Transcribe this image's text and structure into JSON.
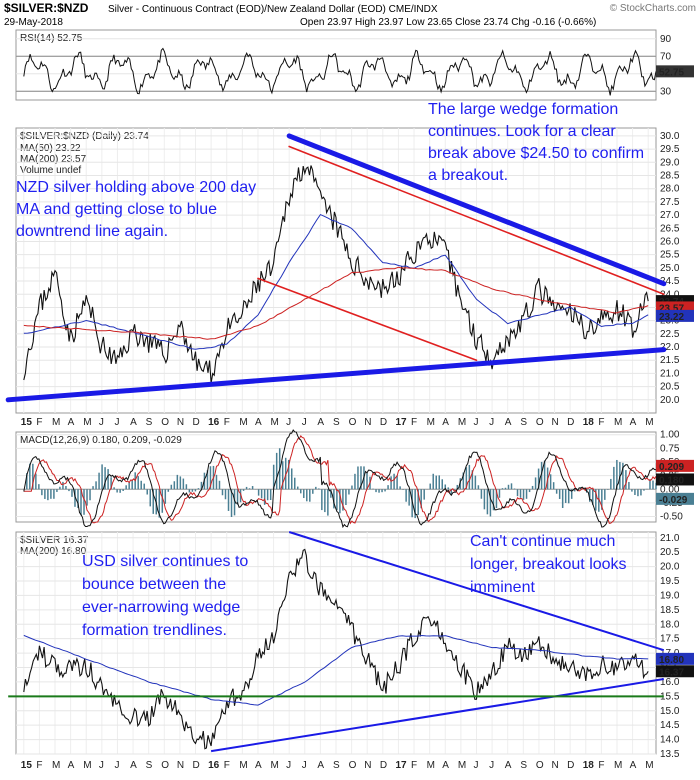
{
  "header": {
    "symbol": "$SILVER:$NZD",
    "description": "Silver - Continuous Contract (EOD)/New Zealand Dollar (EOD)  CME/INDX",
    "date": "29-May-2018",
    "ohlc": "Open 23.97  High 23.97  Low 23.65  Close 23.74  Chg -0.16 (-0.66%)",
    "watermark": "© StockCharts.com"
  },
  "colors": {
    "price": "#111111",
    "ma50": "#2233bb",
    "ma200": "#cc2222",
    "trend_blue": "#1a1ae6",
    "trend_red": "#e02020",
    "macd_hist": "#4a7f93",
    "support_green": "#1a7a1a",
    "annotation": "#1f1ff0"
  },
  "chart_data": [
    {
      "type": "line",
      "panel": "rsi",
      "title": "RSI(14) 52.75",
      "ylim": [
        20,
        100
      ],
      "y_ticks": [
        "90",
        "70",
        "50",
        "30"
      ],
      "last_value": "52.75"
    },
    {
      "type": "line",
      "panel": "nzd_price",
      "title": "$SILVER:$NZD (Daily) 23.74",
      "legend": [
        "MA(50) 23.22",
        "MA(200) 23.57",
        "Volume undef"
      ],
      "ylim": [
        19.5,
        30.3
      ],
      "y_ticks": [
        "30.0",
        "29.5",
        "29.0",
        "28.5",
        "28.0",
        "27.5",
        "27.0",
        "26.5",
        "26.0",
        "25.5",
        "25.0",
        "24.5",
        "24.0",
        "23.5",
        "23.0",
        "22.5",
        "22.0",
        "21.5",
        "21.0",
        "20.5",
        "20.0"
      ],
      "last_labels": [
        "23.74",
        "23.57",
        "23.22"
      ],
      "x_labels": [
        "15",
        "F",
        "M",
        "A",
        "M",
        "J",
        "J",
        "A",
        "S",
        "O",
        "N",
        "D",
        "16",
        "F",
        "M",
        "A",
        "M",
        "J",
        "J",
        "A",
        "S",
        "O",
        "N",
        "D",
        "17",
        "F",
        "M",
        "A",
        "M",
        "J",
        "J",
        "A",
        "S",
        "O",
        "N",
        "D",
        "18",
        "F",
        "M",
        "A",
        "M"
      ],
      "series": [
        {
          "name": "$SILVER:$NZD",
          "points": [
            [
              0,
              21.2
            ],
            [
              1,
              23.5
            ],
            [
              2,
              24.8
            ],
            [
              3,
              22.3
            ],
            [
              4,
              23.8
            ],
            [
              5,
              22.0
            ],
            [
              6,
              21.4
            ],
            [
              7,
              22.6
            ],
            [
              8,
              22.2
            ],
            [
              9,
              21.7
            ],
            [
              10,
              22.9
            ],
            [
              11,
              21.4
            ],
            [
              12,
              21.0
            ],
            [
              13,
              22.6
            ],
            [
              14,
              23.2
            ],
            [
              15,
              24.4
            ],
            [
              16,
              25.0
            ],
            [
              17,
              27.8
            ],
            [
              18,
              29.0
            ],
            [
              19,
              27.6
            ],
            [
              20,
              26.6
            ],
            [
              21,
              25.2
            ],
            [
              22,
              24.6
            ],
            [
              23,
              24.2
            ],
            [
              24,
              24.6
            ],
            [
              25,
              25.6
            ],
            [
              26,
              26.2
            ],
            [
              27,
              25.6
            ],
            [
              28,
              23.8
            ],
            [
              29,
              22.3
            ],
            [
              30,
              21.6
            ],
            [
              31,
              22.3
            ],
            [
              32,
              23.0
            ],
            [
              33,
              24.2
            ],
            [
              34,
              23.4
            ],
            [
              35,
              23.3
            ],
            [
              36,
              22.7
            ],
            [
              37,
              23.0
            ],
            [
              38,
              23.5
            ],
            [
              39,
              22.8
            ],
            [
              40,
              23.74
            ]
          ]
        },
        {
          "name": "MA(50) 23.22",
          "points": [
            [
              0,
              22.5
            ],
            [
              4,
              23.0
            ],
            [
              8,
              22.4
            ],
            [
              11,
              21.9
            ],
            [
              13,
              22.1
            ],
            [
              15,
              23.2
            ],
            [
              17,
              25.2
            ],
            [
              19,
              27.0
            ],
            [
              21,
              26.5
            ],
            [
              23,
              25.2
            ],
            [
              25,
              25.0
            ],
            [
              27,
              25.5
            ],
            [
              29,
              23.8
            ],
            [
              31,
              22.9
            ],
            [
              33,
              23.2
            ],
            [
              35,
              23.5
            ],
            [
              37,
              22.8
            ],
            [
              39,
              22.9
            ],
            [
              40,
              23.22
            ]
          ]
        },
        {
          "name": "MA(200) 23.57",
          "points": [
            [
              0,
              22.8
            ],
            [
              6,
              22.6
            ],
            [
              12,
              22.3
            ],
            [
              15,
              22.8
            ],
            [
              18,
              23.8
            ],
            [
              21,
              24.8
            ],
            [
              24,
              25.0
            ],
            [
              27,
              24.9
            ],
            [
              30,
              24.2
            ],
            [
              33,
              23.8
            ],
            [
              36,
              23.5
            ],
            [
              38,
              23.3
            ],
            [
              40,
              23.57
            ]
          ]
        }
      ],
      "trendlines": [
        {
          "name": "blue downtrend",
          "from": [
            17,
            30.0
          ],
          "to": [
            41,
            24.4
          ]
        },
        {
          "name": "red upper channel",
          "from": [
            17,
            29.6
          ],
          "to": [
            41,
            24.0
          ]
        },
        {
          "name": "red lower channel",
          "from": [
            15,
            24.6
          ],
          "to": [
            29,
            21.5
          ]
        },
        {
          "name": "blue uptrend",
          "from": [
            -1,
            20.0
          ],
          "to": [
            41,
            21.9
          ]
        }
      ]
    },
    {
      "type": "line",
      "panel": "macd",
      "title": "MACD(12,26,9) 0.180, 0.209, -0.029",
      "ylim": [
        -0.6,
        1.05
      ],
      "y_ticks": [
        "1.00",
        "0.75",
        "0.50",
        "0.25",
        "0.00",
        "-0.25",
        "-0.50"
      ],
      "last_labels": [
        "0.180",
        "0.209",
        "-0.029"
      ]
    },
    {
      "type": "line",
      "panel": "usd_price",
      "title": "$SILVER 16.37",
      "legend": [
        "MA(200) 16.80"
      ],
      "ylim": [
        13.5,
        21.2
      ],
      "y_ticks": [
        "21.0",
        "20.5",
        "20.0",
        "19.5",
        "19.0",
        "18.5",
        "18.0",
        "17.5",
        "17.0",
        "16.5",
        "16.0",
        "15.5",
        "15.0",
        "14.5",
        "14.0",
        "13.5"
      ],
      "last_labels": [
        "16.80",
        "16.37"
      ],
      "x_labels": [
        "15",
        "F",
        "M",
        "A",
        "M",
        "J",
        "J",
        "A",
        "S",
        "O",
        "N",
        "D",
        "16",
        "F",
        "M",
        "A",
        "M",
        "J",
        "J",
        "A",
        "S",
        "O",
        "N",
        "D",
        "17",
        "F",
        "M",
        "A",
        "M",
        "J",
        "J",
        "A",
        "S",
        "O",
        "N",
        "D",
        "18",
        "F",
        "M",
        "A",
        "M"
      ],
      "series": [
        {
          "name": "$SILVER",
          "points": [
            [
              0,
              16.0
            ],
            [
              1,
              17.0
            ],
            [
              2,
              16.6
            ],
            [
              3,
              16.4
            ],
            [
              4,
              16.6
            ],
            [
              5,
              15.8
            ],
            [
              6,
              15.2
            ],
            [
              7,
              14.8
            ],
            [
              8,
              14.7
            ],
            [
              9,
              15.6
            ],
            [
              10,
              14.8
            ],
            [
              11,
              13.9
            ],
            [
              12,
              14.0
            ],
            [
              13,
              15.3
            ],
            [
              14,
              15.6
            ],
            [
              15,
              16.9
            ],
            [
              16,
              17.6
            ],
            [
              17,
              19.8
            ],
            [
              18,
              20.3
            ],
            [
              19,
              19.2
            ],
            [
              20,
              19.0
            ],
            [
              21,
              17.8
            ],
            [
              22,
              16.8
            ],
            [
              23,
              15.8
            ],
            [
              24,
              16.5
            ],
            [
              25,
              17.6
            ],
            [
              26,
              18.2
            ],
            [
              27,
              17.5
            ],
            [
              28,
              16.5
            ],
            [
              29,
              15.6
            ],
            [
              30,
              16.3
            ],
            [
              31,
              17.2
            ],
            [
              32,
              17.0
            ],
            [
              33,
              17.4
            ],
            [
              34,
              16.8
            ],
            [
              35,
              16.5
            ],
            [
              36,
              16.2
            ],
            [
              37,
              16.6
            ],
            [
              38,
              16.4
            ],
            [
              39,
              16.8
            ],
            [
              40,
              16.37
            ]
          ]
        },
        {
          "name": "MA(200) 16.80",
          "points": [
            [
              0,
              17.6
            ],
            [
              4,
              16.8
            ],
            [
              8,
              16.0
            ],
            [
              12,
              15.4
            ],
            [
              15,
              15.2
            ],
            [
              18,
              16.0
            ],
            [
              21,
              17.2
            ],
            [
              24,
              17.6
            ],
            [
              27,
              17.6
            ],
            [
              30,
              17.2
            ],
            [
              33,
              17.1
            ],
            [
              36,
              16.9
            ],
            [
              38,
              16.8
            ],
            [
              40,
              16.8
            ]
          ]
        }
      ],
      "trendlines": [
        {
          "name": "blue downtrend",
          "from": [
            17,
            21.2
          ],
          "to": [
            41,
            17.1
          ]
        },
        {
          "name": "blue uptrend",
          "from": [
            12,
            13.6
          ],
          "to": [
            41,
            16.1
          ]
        },
        {
          "name": "green support",
          "from": [
            -1,
            15.5
          ],
          "to": [
            41,
            15.5
          ]
        }
      ]
    }
  ],
  "annotations": {
    "wedge_note": [
      "The large wedge formation",
      "continues. Look for a clear",
      "break above $24.50 to confirm",
      "a breakout."
    ],
    "nzd_note": [
      "NZD silver holding above 200 day",
      "MA and getting close to blue",
      "downtrend line again."
    ],
    "usd_note": [
      "USD silver continues to",
      "bounce between the",
      "ever-narrowing wedge",
      "formation trendlines."
    ],
    "breakout_note": [
      "Can't continue much",
      "longer, breakout looks",
      "imminent"
    ]
  }
}
